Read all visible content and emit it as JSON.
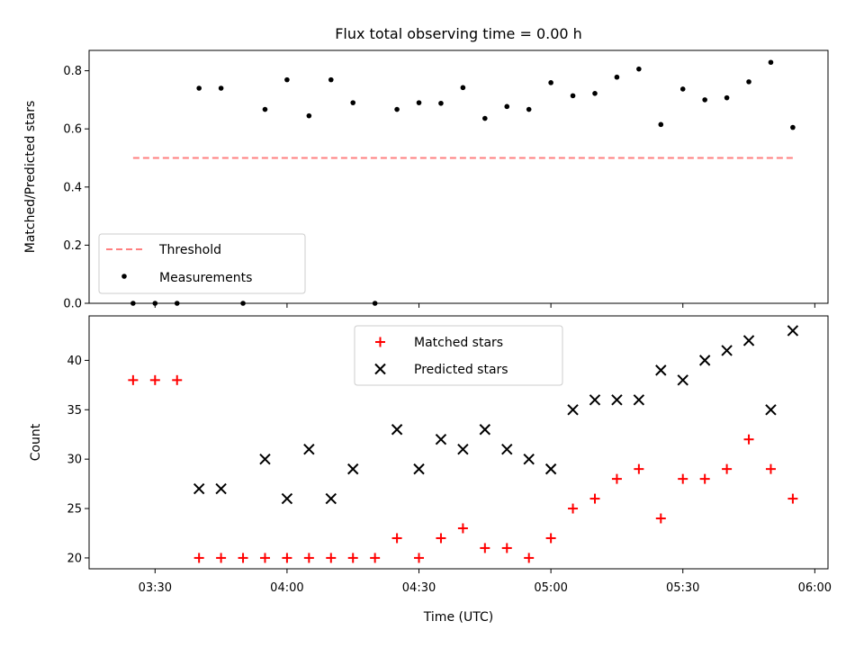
{
  "chart_data": [
    {
      "type": "scatter",
      "title": "Flux total observing time = 0.00 h",
      "xlabel": "",
      "ylabel": "Matched/Predicted stars",
      "ylim": [
        0,
        0.87
      ],
      "yticks": [
        "0.0",
        "0.2",
        "0.4",
        "0.6",
        "0.8"
      ],
      "ytick_values": [
        0,
        0.2,
        0.4,
        0.6,
        0.8
      ],
      "x_range": [
        "03:15",
        "06:03"
      ],
      "legend_position": "lower-left",
      "series": [
        {
          "name": "Threshold",
          "style": "dashed-line",
          "color": "#ff7f7f",
          "x": [
            "03:25",
            "05:55"
          ],
          "y": [
            0.5,
            0.5
          ]
        },
        {
          "name": "Measurements",
          "style": "dot",
          "color": "#000000",
          "x": [
            "03:25",
            "03:30",
            "03:35",
            "03:40",
            "03:45",
            "03:50",
            "03:55",
            "04:00",
            "04:05",
            "04:10",
            "04:15",
            "04:20",
            "04:25",
            "04:30",
            "04:35",
            "04:40",
            "04:45",
            "04:50",
            "04:55",
            "05:00",
            "05:05",
            "05:10",
            "05:15",
            "05:20",
            "05:25",
            "05:30",
            "05:35",
            "05:40",
            "05:45",
            "05:50",
            "05:55"
          ],
          "y": [
            0.0,
            0.0,
            0.0,
            0.74,
            0.74,
            0.0,
            0.667,
            0.769,
            0.645,
            0.769,
            0.69,
            0.0,
            0.667,
            0.69,
            0.688,
            0.742,
            0.636,
            0.677,
            0.667,
            0.759,
            0.714,
            0.722,
            0.778,
            0.806,
            0.615,
            0.737,
            0.7,
            0.707,
            0.762,
            0.829,
            0.605
          ]
        }
      ]
    },
    {
      "type": "scatter",
      "title": "",
      "xlabel": "Time (UTC)",
      "ylabel": "Count",
      "ylim": [
        18.9,
        44.5
      ],
      "yticks": [
        "20",
        "25",
        "30",
        "35",
        "40"
      ],
      "ytick_values": [
        20,
        25,
        30,
        35,
        40
      ],
      "x_range": [
        "03:15",
        "06:03"
      ],
      "xticks": [
        "03:30",
        "04:00",
        "04:30",
        "05:00",
        "05:30",
        "06:00"
      ],
      "legend_position": "upper-center",
      "series": [
        {
          "name": "Matched stars",
          "marker": "plus",
          "color": "#ff0000",
          "x": [
            "03:25",
            "03:30",
            "03:35",
            "03:40",
            "03:45",
            "03:50",
            "03:55",
            "04:00",
            "04:05",
            "04:10",
            "04:15",
            "04:20",
            "04:25",
            "04:30",
            "04:35",
            "04:40",
            "04:45",
            "04:50",
            "04:55",
            "05:00",
            "05:05",
            "05:10",
            "05:15",
            "05:20",
            "05:25",
            "05:30",
            "05:35",
            "05:40",
            "05:45",
            "05:50",
            "05:55"
          ],
          "y": [
            38,
            38,
            38,
            20,
            20,
            20,
            20,
            20,
            20,
            20,
            20,
            20,
            22,
            20,
            22,
            23,
            21,
            21,
            20,
            22,
            25,
            26,
            28,
            29,
            24,
            28,
            28,
            29,
            32,
            29,
            26
          ]
        },
        {
          "name": "Predicted stars",
          "marker": "x",
          "color": "#000000",
          "x": [
            "03:40",
            "03:45",
            "03:55",
            "04:00",
            "04:05",
            "04:10",
            "04:15",
            "04:25",
            "04:30",
            "04:35",
            "04:40",
            "04:45",
            "04:50",
            "04:55",
            "05:00",
            "05:05",
            "05:10",
            "05:15",
            "05:20",
            "05:25",
            "05:30",
            "05:35",
            "05:40",
            "05:45",
            "05:50",
            "05:55"
          ],
          "y": [
            27,
            27,
            30,
            26,
            31,
            26,
            29,
            33,
            29,
            32,
            31,
            33,
            31,
            30,
            29,
            35,
            36,
            36,
            36,
            39,
            38,
            40,
            41,
            42,
            35,
            43
          ]
        }
      ]
    }
  ]
}
